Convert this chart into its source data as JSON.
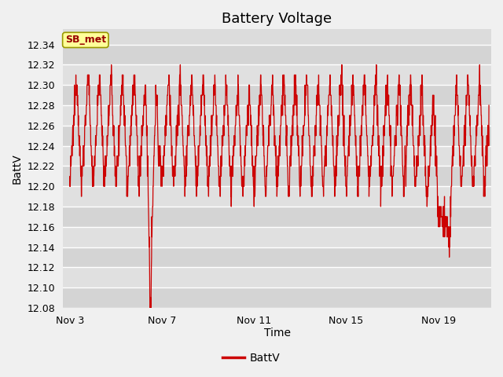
{
  "title": "Battery Voltage",
  "xlabel": "Time",
  "ylabel": "BattV",
  "legend_label": "BattV",
  "annotation_text": "SB_met",
  "ylim": [
    12.08,
    12.355
  ],
  "yticks": [
    12.08,
    12.1,
    12.12,
    12.14,
    12.16,
    12.18,
    12.2,
    12.22,
    12.24,
    12.26,
    12.28,
    12.3,
    12.32,
    12.34
  ],
  "xtick_labels": [
    "Nov 3",
    "Nov 7",
    "Nov 11",
    "Nov 15",
    "Nov 19"
  ],
  "xtick_positions": [
    3,
    7,
    11,
    15,
    19
  ],
  "xlim_start": 2.7,
  "xlim_end": 21.3,
  "line_color": "#cc0000",
  "plot_bg_color": "#dcdcdc",
  "annotation_bg": "#ffff99",
  "annotation_border": "#999900",
  "annotation_text_color": "#990000",
  "title_fontsize": 13,
  "axis_label_fontsize": 10,
  "tick_fontsize": 9,
  "band_colors": [
    "#d4d4d4",
    "#e0e0e0"
  ]
}
